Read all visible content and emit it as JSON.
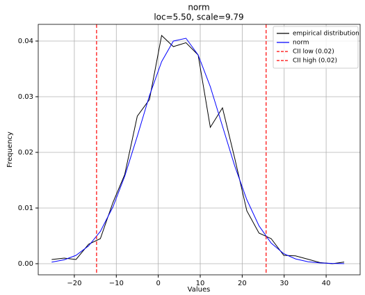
{
  "chart_data": {
    "type": "line",
    "title": "norm",
    "subtitle": "loc=5.50, scale=9.79",
    "xlabel": "Values",
    "ylabel": "Frequency",
    "x": [
      -25.4,
      -22.4,
      -19.6,
      -16.6,
      -13.8,
      -10.8,
      -8.0,
      -5.0,
      -2.1,
      0.8,
      3.6,
      6.6,
      9.5,
      12.4,
      15.3,
      18.2,
      21.1,
      24.0,
      26.9,
      29.9,
      32.7,
      35.7,
      38.5,
      41.5,
      44.3
    ],
    "series": [
      {
        "name": "empirical distribution",
        "color": "#000000",
        "values": [
          0.00075,
          0.001,
          0.00075,
          0.0035,
          0.0045,
          0.011,
          0.016,
          0.0265,
          0.0295,
          0.041,
          0.039,
          0.0397,
          0.0375,
          0.0245,
          0.028,
          0.019,
          0.0095,
          0.0055,
          0.0045,
          0.0015,
          0.0014,
          0.0008,
          0.0002,
          0.0,
          0.0003
        ]
      },
      {
        "name": "norm",
        "color": "#0000ff",
        "values": [
          0.00028,
          0.0007,
          0.0015,
          0.0032,
          0.0058,
          0.0102,
          0.0157,
          0.0229,
          0.0302,
          0.0363,
          0.04,
          0.0405,
          0.0375,
          0.0318,
          0.0247,
          0.0176,
          0.0115,
          0.0068,
          0.0037,
          0.0018,
          0.00086,
          0.00035,
          0.00014,
          5e-05,
          2e-05
        ]
      }
    ],
    "vlines": [
      {
        "name": "CII low (0.02)",
        "color": "#ff0000",
        "x": -14.7
      },
      {
        "name": "CII high (0.02)",
        "color": "#ff0000",
        "x": 25.7
      }
    ],
    "xlim": [
      -28.6,
      48.1
    ],
    "ylim": [
      -0.002,
      0.043
    ],
    "xticks": [
      {
        "value": -20,
        "label": "−20"
      },
      {
        "value": -10,
        "label": "−10"
      },
      0,
      10,
      20,
      30,
      40
    ],
    "yticks": [
      {
        "value": 0,
        "label": "0.00"
      },
      {
        "value": 0.01,
        "label": "0.01"
      },
      {
        "value": 0.02,
        "label": "0.02"
      },
      {
        "value": 0.03,
        "label": "0.03"
      },
      {
        "value": 0.04,
        "label": "0.04"
      }
    ],
    "grid": true,
    "legend": "upper right"
  }
}
